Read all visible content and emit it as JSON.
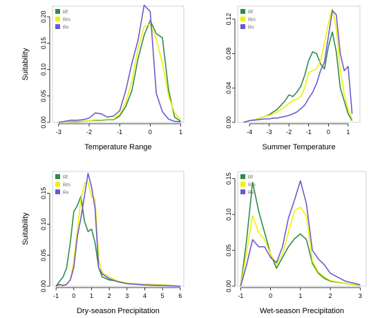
{
  "colors": {
    "Rf": "#2e8b47",
    "Rm": "#f0f000",
    "Rv": "#6a5acd"
  },
  "chart_data": [
    {
      "type": "line",
      "xlabel": "Temperature Range",
      "ylabel": "Suitability",
      "xlim": [
        -3.2,
        1.1
      ],
      "ylim": [
        0,
        0.22
      ],
      "xticks": [
        "-3",
        "-2",
        "-1",
        "0",
        "1"
      ],
      "yticks": [
        "0.00",
        "0.05",
        "0.10",
        "0.15",
        "0.20"
      ],
      "x": [
        -3.0,
        -2.8,
        -2.6,
        -2.4,
        -2.2,
        -2.0,
        -1.8,
        -1.6,
        -1.4,
        -1.2,
        -1.0,
        -0.8,
        -0.6,
        -0.4,
        -0.2,
        0.0,
        0.2,
        0.4,
        0.6,
        0.8,
        1.0
      ],
      "series": [
        {
          "name": "Rf",
          "values": [
            0.0,
            0.001,
            0.001,
            0.001,
            0.002,
            0.003,
            0.004,
            0.004,
            0.005,
            0.005,
            0.012,
            0.03,
            0.06,
            0.12,
            0.165,
            0.193,
            0.168,
            0.16,
            0.062,
            0.01,
            0.002
          ]
        },
        {
          "name": "Rm",
          "values": [
            0.0,
            0.001,
            0.002,
            0.002,
            0.002,
            0.003,
            0.005,
            0.005,
            0.006,
            0.006,
            0.016,
            0.038,
            0.078,
            0.14,
            0.182,
            0.186,
            0.158,
            0.112,
            0.05,
            0.018,
            0.005
          ]
        },
        {
          "name": "Rv",
          "values": [
            0.0,
            0.002,
            0.004,
            0.004,
            0.005,
            0.008,
            0.018,
            0.016,
            0.01,
            0.012,
            0.022,
            0.06,
            0.112,
            0.155,
            0.222,
            0.21,
            0.055,
            0.02,
            0.006,
            0.002,
            0.001
          ]
        }
      ]
    },
    {
      "type": "line",
      "xlabel": "Summer Temperature",
      "ylabel": "",
      "xlim": [
        -4.6,
        1.6
      ],
      "ylim": [
        0,
        0.135
      ],
      "xticks": [
        "-4",
        "-3",
        "-2",
        "-1",
        "0",
        "1"
      ],
      "yticks": [
        "0.00",
        "0.04",
        "0.08",
        "0.12"
      ],
      "x": [
        -4.3,
        -4.0,
        -3.6,
        -3.2,
        -3.0,
        -2.8,
        -2.6,
        -2.4,
        -2.2,
        -2.0,
        -1.8,
        -1.6,
        -1.4,
        -1.2,
        -1.0,
        -0.8,
        -0.6,
        -0.4,
        -0.2,
        0.0,
        0.2,
        0.4,
        0.6,
        0.8,
        1.0,
        1.2
      ],
      "series": [
        {
          "name": "Rf",
          "values": [
            0.0,
            0.002,
            0.004,
            0.007,
            0.009,
            0.012,
            0.015,
            0.02,
            0.025,
            0.032,
            0.03,
            0.035,
            0.042,
            0.055,
            0.072,
            0.082,
            0.08,
            0.068,
            0.062,
            0.088,
            0.105,
            0.082,
            0.04,
            0.025,
            0.01,
            0.002
          ]
        },
        {
          "name": "Rm",
          "values": [
            0.0,
            0.002,
            0.004,
            0.007,
            0.008,
            0.01,
            0.012,
            0.015,
            0.018,
            0.022,
            0.025,
            0.027,
            0.03,
            0.04,
            0.058,
            0.06,
            0.062,
            0.072,
            0.092,
            0.115,
            0.132,
            0.11,
            0.06,
            0.033,
            0.015,
            0.004
          ]
        },
        {
          "name": "Rv",
          "values": [
            0.0,
            0.002,
            0.003,
            0.004,
            0.004,
            0.005,
            0.005,
            0.006,
            0.007,
            0.008,
            0.01,
            0.012,
            0.016,
            0.02,
            0.028,
            0.035,
            0.045,
            0.06,
            0.07,
            0.1,
            0.13,
            0.125,
            0.08,
            0.06,
            0.065,
            0.01
          ]
        }
      ]
    },
    {
      "type": "line",
      "xlabel": "Dry-season Precipitation",
      "ylabel": "Suitability",
      "xlim": [
        -1.2,
        6.2
      ],
      "ylim": [
        0,
        0.185
      ],
      "xticks": [
        "-1",
        "0",
        "1",
        "2",
        "3",
        "4",
        "5",
        "6"
      ],
      "yticks": [
        "0.00",
        "0.05",
        "0.10",
        "0.15"
      ],
      "x": [
        -1.0,
        -0.8,
        -0.6,
        -0.4,
        -0.2,
        0.0,
        0.2,
        0.4,
        0.6,
        0.8,
        1.0,
        1.2,
        1.4,
        1.6,
        2.0,
        2.5,
        3.0,
        4.0,
        5.0,
        6.0
      ],
      "series": [
        {
          "name": "Rf",
          "values": [
            0.0,
            0.008,
            0.015,
            0.03,
            0.07,
            0.12,
            0.13,
            0.145,
            0.105,
            0.088,
            0.092,
            0.07,
            0.03,
            0.015,
            0.01,
            0.008,
            0.005,
            0.003,
            0.002,
            0.0
          ]
        },
        {
          "name": "Rm",
          "values": [
            0.0,
            0.001,
            0.002,
            0.003,
            0.01,
            0.04,
            0.09,
            0.14,
            0.165,
            0.168,
            0.145,
            0.14,
            0.045,
            0.022,
            0.015,
            0.008,
            0.005,
            0.003,
            0.002,
            0.0
          ]
        },
        {
          "name": "Rv",
          "values": [
            0.0,
            0.003,
            0.001,
            0.003,
            0.01,
            0.03,
            0.08,
            0.11,
            0.145,
            0.182,
            0.16,
            0.125,
            0.03,
            0.02,
            0.012,
            0.007,
            0.004,
            0.002,
            0.001,
            0.0
          ]
        }
      ]
    },
    {
      "type": "line",
      "xlabel": "Wet-season Precipitation",
      "ylabel": "",
      "xlim": [
        -1.1,
        3.2
      ],
      "ylim": [
        0,
        0.16
      ],
      "xticks": [
        "-1",
        "0",
        "1",
        "2",
        "3"
      ],
      "yticks": [
        "0.00",
        "0.05",
        "0.10",
        "0.15"
      ],
      "x": [
        -1.0,
        -0.8,
        -0.6,
        -0.4,
        -0.2,
        0.0,
        0.2,
        0.4,
        0.6,
        0.8,
        1.0,
        1.2,
        1.4,
        1.6,
        1.8,
        2.0,
        2.5,
        3.0
      ],
      "series": [
        {
          "name": "Rf",
          "values": [
            0.0,
            0.065,
            0.145,
            0.105,
            0.075,
            0.045,
            0.025,
            0.04,
            0.055,
            0.066,
            0.073,
            0.065,
            0.032,
            0.018,
            0.011,
            0.007,
            0.004,
            0.001
          ]
        },
        {
          "name": "Rm",
          "values": [
            0.0,
            0.048,
            0.098,
            0.075,
            0.065,
            0.045,
            0.03,
            0.045,
            0.075,
            0.105,
            0.11,
            0.098,
            0.035,
            0.02,
            0.013,
            0.008,
            0.004,
            0.001
          ]
        },
        {
          "name": "Rv",
          "values": [
            0.0,
            0.03,
            0.065,
            0.055,
            0.055,
            0.04,
            0.033,
            0.055,
            0.095,
            0.12,
            0.147,
            0.115,
            0.05,
            0.038,
            0.03,
            0.018,
            0.007,
            0.002
          ]
        }
      ]
    }
  ]
}
